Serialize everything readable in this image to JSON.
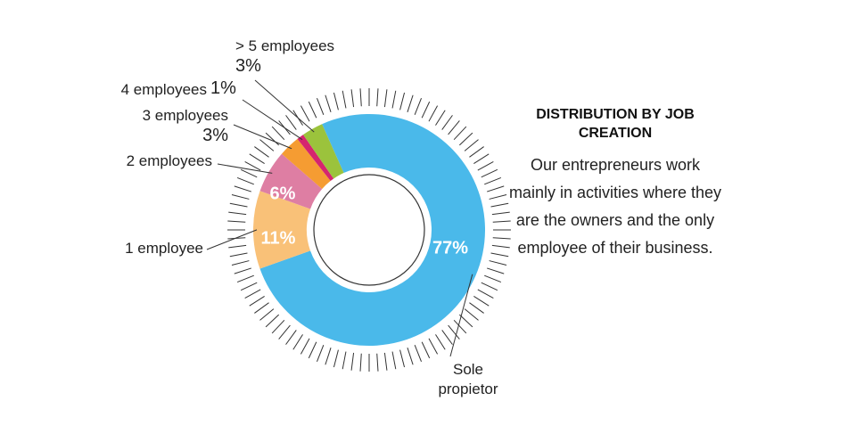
{
  "chart_data": {
    "type": "donut",
    "title": "DISTRIBUTION BY JOB CREATION",
    "description": "Our entrepreneurs work mainly in activities where they are the owners and the only employee of their business.",
    "categories": [
      "Sole propietor",
      "1 employee",
      "2 employees",
      "3 employees",
      "4 employees",
      "> 5 employees"
    ],
    "values": [
      77,
      11,
      6,
      3,
      1,
      3
    ],
    "value_labels": [
      "77%",
      "11%",
      "6%",
      "3%",
      "1%",
      "3%"
    ],
    "colors": [
      "#4ab9ea",
      "#f9c178",
      "#de7ea3",
      "#f59c32",
      "#d5256f",
      "#9bc33c"
    ]
  }
}
